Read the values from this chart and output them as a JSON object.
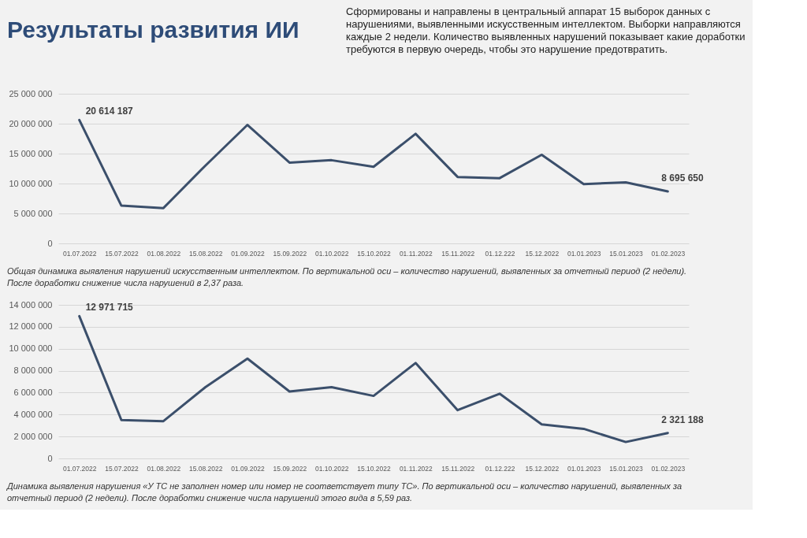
{
  "chart_data": [
    {
      "type": "line",
      "title": "Результаты развития ИИ",
      "subtitle": "Сформированы и направлены в центральный аппарат 15 выборок данных с нарушениями, выявленными искусственным интеллектом. Выборки направляются каждые 2 недели. Количество выявленных нарушений показывает какие доработки требуются в первую очередь, чтобы это нарушение предотвратить.",
      "categories": [
        "01.07.2022",
        "15.07.2022",
        "01.08.2022",
        "15.08.2022",
        "01.09.2022",
        "15.09.2022",
        "01.10.2022",
        "15.10.2022",
        "01.11.2022",
        "15.11.2022",
        "01.12.222",
        "15.12.2022",
        "01.01.2023",
        "15.01.2023",
        "01.02.2023"
      ],
      "values": [
        20614187,
        6300000,
        5900000,
        13000000,
        19800000,
        13500000,
        13900000,
        12800000,
        18300000,
        11100000,
        10900000,
        14800000,
        9900000,
        10200000,
        8695650
      ],
      "value_labels": [
        "20 614 187",
        null,
        null,
        null,
        null,
        null,
        null,
        null,
        null,
        null,
        null,
        null,
        null,
        null,
        "8 695 650"
      ],
      "color": "#3b4f6b",
      "marker": "none",
      "line_style": "solid",
      "ylim": [
        0,
        25000000
      ],
      "yticks": [
        0,
        {
          "value": 5000000,
          "label": "5 000 000"
        },
        {
          "value": 10000000,
          "label": "10 000 000"
        },
        {
          "value": 15000000,
          "label": "15 000 000"
        },
        {
          "value": 20000000,
          "label": "20 000 000"
        },
        {
          "value": 25000000,
          "label": "25 000 000"
        }
      ],
      "grid": "y",
      "annotations": [
        "Общая динамика выявления нарушений искусственным интеллектом. По вертикальной оси – количество нарушений, выявленных за отчетный период (2 недели). После доработки снижение числа нарушений в 2,37 раза."
      ]
    },
    {
      "type": "line",
      "categories": [
        "01.07.2022",
        "15.07.2022",
        "01.08.2022",
        "15.08.2022",
        "01.09.2022",
        "15.09.2022",
        "01.10.2022",
        "15.10.2022",
        "01.11.2022",
        "15.11.2022",
        "01.12.222",
        "15.12.2022",
        "01.01.2023",
        "15.01.2023",
        "01.02.2023"
      ],
      "values": [
        12971715,
        3500000,
        3400000,
        6500000,
        9100000,
        6100000,
        6500000,
        5700000,
        8700000,
        4400000,
        5900000,
        3100000,
        2700000,
        1500000,
        2321188
      ],
      "value_labels": [
        "12 971 715",
        null,
        null,
        null,
        null,
        null,
        null,
        null,
        null,
        null,
        null,
        null,
        null,
        null,
        "2 321 188"
      ],
      "color": "#3b4f6b",
      "marker": "none",
      "line_style": "solid",
      "ylim": [
        0,
        14000000
      ],
      "yticks": [
        0,
        {
          "value": 2000000,
          "label": "2 000 000"
        },
        {
          "value": 4000000,
          "label": "4 000 000"
        },
        {
          "value": 6000000,
          "label": "6 000 000"
        },
        {
          "value": 8000000,
          "label": "8 000 000"
        },
        {
          "value": 10000000,
          "label": "10 000 000"
        },
        {
          "value": 12000000,
          "label": "12 000 000"
        },
        {
          "value": 14000000,
          "label": "14 000 000"
        }
      ],
      "grid": "y",
      "annotations": [
        "Динамика выявления нарушения «У ТС не заполнен номер или номер не соответствует типу ТС». По вертикальной оси – количество нарушений, выявленных за отчетный период (2 недели). После доработки снижение числа нарушений этого вида в 5,59 раз."
      ]
    }
  ]
}
